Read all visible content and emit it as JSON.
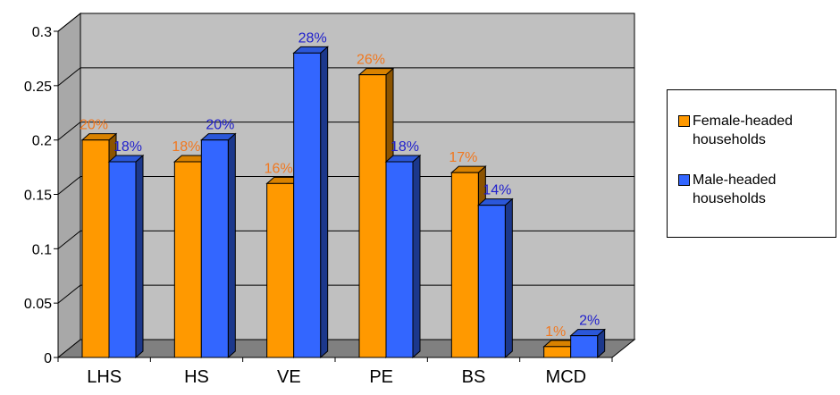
{
  "chart_data": {
    "type": "bar",
    "categories": [
      "LHS",
      "HS",
      "VE",
      "PE",
      "BS",
      "MCD"
    ],
    "series": [
      {
        "name": "Female-headed households",
        "values": [
          0.2,
          0.18,
          0.16,
          0.26,
          0.17,
          0.01
        ],
        "labels": [
          "20%",
          "18%",
          "16%",
          "26%",
          "17%",
          "1%"
        ],
        "color": "#FF9900",
        "label_color": "#F07820"
      },
      {
        "name": "Male-headed households",
        "values": [
          0.18,
          0.2,
          0.28,
          0.18,
          0.14,
          0.02
        ],
        "labels": [
          "18%",
          "20%",
          "28%",
          "18%",
          "14%",
          "2%"
        ],
        "color": "#3366FF",
        "label_color": "#1F1FCC"
      }
    ],
    "ylim": [
      0,
      0.3
    ],
    "yticks": [
      "0",
      "0.05",
      "0.1",
      "0.15",
      "0.2",
      "0.25",
      "0.3"
    ],
    "title": "",
    "xlabel": "",
    "ylabel": "",
    "grid": true,
    "legend_position": "right"
  }
}
